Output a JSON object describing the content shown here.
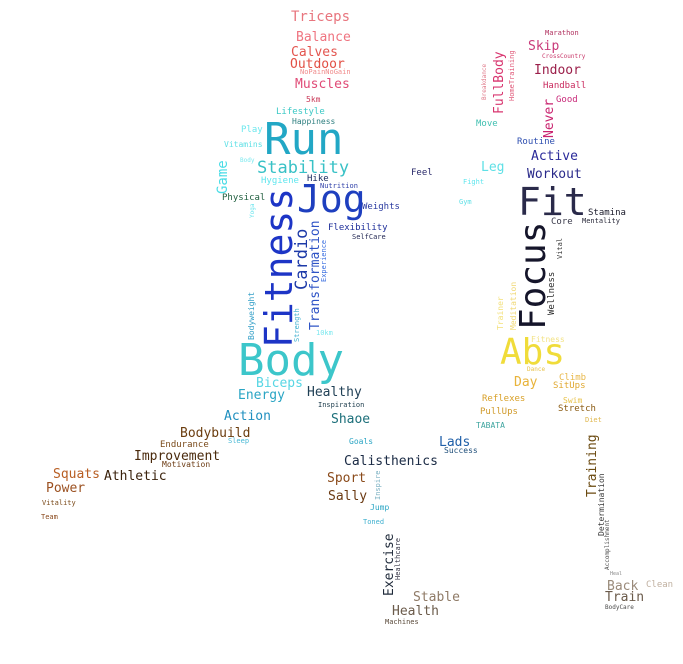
{
  "words": [
    {
      "text": "Triceps",
      "color": "#e8757e"
    },
    {
      "text": "Balance",
      "color": "#ef7480"
    },
    {
      "text": "Calves",
      "color": "#e3554f"
    },
    {
      "text": "Outdoor",
      "color": "#e24f44"
    },
    {
      "text": "NoPainNoGain",
      "color": "#f08a8a"
    },
    {
      "text": "Muscles",
      "color": "#e04a76"
    },
    {
      "text": "5km",
      "color": "#c93958"
    },
    {
      "text": "Lifestyle",
      "color": "#3cc9c6"
    },
    {
      "text": "Happiness",
      "color": "#2f7f80"
    },
    {
      "text": "Play",
      "color": "#6ee8ee"
    },
    {
      "text": "Run",
      "color": "#22a7c5"
    },
    {
      "text": "Vitamins",
      "color": "#5fe0e6"
    },
    {
      "text": "Game",
      "color": "#47dce6"
    },
    {
      "text": "Stability",
      "color": "#38c1c6"
    },
    {
      "text": "Body",
      "color": "#7de9ef"
    },
    {
      "text": "Hygiene",
      "color": "#5fe6ee"
    },
    {
      "text": "Hike",
      "color": "#1a2a5e"
    },
    {
      "text": "Jog",
      "color": "#1e3fbf"
    },
    {
      "text": "Nutrition",
      "color": "#2e3fa8"
    },
    {
      "text": "Physical",
      "color": "#1f5e3e"
    },
    {
      "text": "Fitness",
      "color": "#1d35c6"
    },
    {
      "text": "Weights",
      "color": "#2a3aa0"
    },
    {
      "text": "Yoga",
      "color": "#6fe5ee"
    },
    {
      "text": "Cardio",
      "color": "#1d3aa8"
    },
    {
      "text": "Flexibility",
      "color": "#1f2f9a"
    },
    {
      "text": "SelfCare",
      "color": "#1f2450"
    },
    {
      "text": "Transformation",
      "color": "#2f54c6"
    },
    {
      "text": "Experience",
      "color": "#3b6fe0"
    },
    {
      "text": "Bodyweight",
      "color": "#34a0c8"
    },
    {
      "text": "Strength",
      "color": "#3fb0cf"
    },
    {
      "text": "10km",
      "color": "#7de8ef"
    },
    {
      "text": "Body",
      "color": "#3cc6ca"
    },
    {
      "text": "Biceps",
      "color": "#57d6e4"
    },
    {
      "text": "Energy",
      "color": "#2aa5c4"
    },
    {
      "text": "Healthy",
      "color": "#1f3f55"
    },
    {
      "text": "Inspiration",
      "color": "#1a3a4a"
    },
    {
      "text": "Action",
      "color": "#1f8fbf"
    },
    {
      "text": "Shaoe",
      "color": "#1c6f7a"
    },
    {
      "text": "Bodybuild",
      "color": "#6b3d0f"
    },
    {
      "text": "Sleep",
      "color": "#45b8d5"
    },
    {
      "text": "Endurance",
      "color": "#7a4a1a"
    },
    {
      "text": "Improvement",
      "color": "#4a2a0c"
    },
    {
      "text": "Motivation",
      "color": "#6b3a12"
    },
    {
      "text": "Squats",
      "color": "#b85e23"
    },
    {
      "text": "Athletic",
      "color": "#3a220c"
    },
    {
      "text": "Power",
      "color": "#9b5020"
    },
    {
      "text": "Vitality",
      "color": "#7a4a1a"
    },
    {
      "text": "Team",
      "color": "#8a4a1e"
    },
    {
      "text": "Goals",
      "color": "#2aa5c4"
    },
    {
      "text": "Calisthenics",
      "color": "#1a2a44"
    },
    {
      "text": "Lads",
      "color": "#1f5fa8"
    },
    {
      "text": "Success",
      "color": "#1f4f7a"
    },
    {
      "text": "Sport",
      "color": "#8a4a1a"
    },
    {
      "text": "Sally",
      "color": "#6b3a12"
    },
    {
      "text": "Inspire",
      "color": "#7ab0c2"
    },
    {
      "text": "Jump",
      "color": "#2aa5c4"
    },
    {
      "text": "Toned",
      "color": "#3fb0cf"
    },
    {
      "text": "Exercise",
      "color": "#1f2a3a"
    },
    {
      "text": "Healthcare",
      "color": "#3a3a4a"
    },
    {
      "text": "Stable",
      "color": "#8f7a66"
    },
    {
      "text": "Health",
      "color": "#6b5b4b"
    },
    {
      "text": "Machines",
      "color": "#5a4a3a"
    },
    {
      "text": "Marathon",
      "color": "#b0305e"
    },
    {
      "text": "CrossCountry",
      "color": "#c93a6b"
    },
    {
      "text": "Skip",
      "color": "#c93a7a"
    },
    {
      "text": "Breakdance",
      "color": "#e07a8a"
    },
    {
      "text": "HomeTraining",
      "color": "#e05a7a"
    },
    {
      "text": "FullBody",
      "color": "#d8356f"
    },
    {
      "text": "Indoor",
      "color": "#9b1f4a"
    },
    {
      "text": "Handball",
      "color": "#c92a5e"
    },
    {
      "text": "Good",
      "color": "#c92a7a"
    },
    {
      "text": "Never",
      "color": "#c9236f"
    },
    {
      "text": "Move",
      "color": "#3fbfb0"
    },
    {
      "text": "Routine",
      "color": "#2e4fb0"
    },
    {
      "text": "Active",
      "color": "#2a2a9a"
    },
    {
      "text": "Leg",
      "color": "#5fe0e6"
    },
    {
      "text": "Feel",
      "color": "#2a2a6a"
    },
    {
      "text": "Workout",
      "color": "#2a2a8a"
    },
    {
      "text": "Fight",
      "color": "#5fe6ee"
    },
    {
      "text": "Gym",
      "color": "#5fe0e6"
    },
    {
      "text": "Fit",
      "color": "#2a2a4a"
    },
    {
      "text": "Stamina",
      "color": "#1a1a2a"
    },
    {
      "text": "Mentality",
      "color": "#2a2a3a"
    },
    {
      "text": "Core",
      "color": "#3a3a4a"
    },
    {
      "text": "Focus",
      "color": "#15152a"
    },
    {
      "text": "Vital",
      "color": "#3a3a3a"
    },
    {
      "text": "Wellness",
      "color": "#2a2a2a"
    },
    {
      "text": "Meditation",
      "color": "#f0d874"
    },
    {
      "text": "Trainer",
      "color": "#f3e07a"
    },
    {
      "text": "Fitness",
      "color": "#f3e386"
    },
    {
      "text": "Dance",
      "color": "#e8c24a"
    },
    {
      "text": "Abs",
      "color": "#f0dc3a"
    },
    {
      "text": "Climb",
      "color": "#e8b84a"
    },
    {
      "text": "Day",
      "color": "#e8b33a"
    },
    {
      "text": "SitUps",
      "color": "#e0a830"
    },
    {
      "text": "Reflexes",
      "color": "#d8a028"
    },
    {
      "text": "Swim",
      "color": "#e8c24a"
    },
    {
      "text": "PullUps",
      "color": "#d09a2a"
    },
    {
      "text": "Stretch",
      "color": "#8a5a10"
    },
    {
      "text": "Diet",
      "color": "#e0b850"
    },
    {
      "text": "TABATA",
      "color": "#3fa5a0"
    },
    {
      "text": "Training",
      "color": "#6b4a10"
    },
    {
      "text": "Determination",
      "color": "#3a3a3a"
    },
    {
      "text": "Accomplishment",
      "color": "#4a4a4a"
    },
    {
      "text": "Heal",
      "color": "#8a8a8a"
    },
    {
      "text": "Back",
      "color": "#9a8a7a"
    },
    {
      "text": "Clean",
      "color": "#c0b0a0"
    },
    {
      "text": "Train",
      "color": "#6b5b4b"
    },
    {
      "text": "BodyCare",
      "color": "#4a4a4a"
    }
  ]
}
